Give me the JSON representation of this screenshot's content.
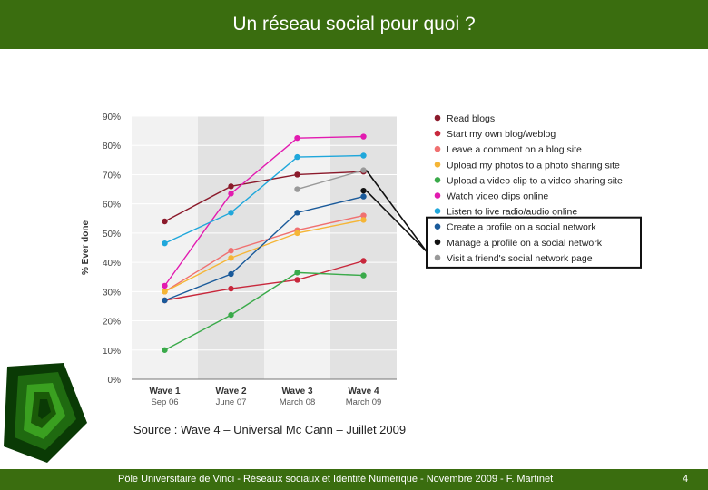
{
  "header": {
    "title": "Un réseau social pour quoi ?"
  },
  "source": "Source : Wave 4 – Universal Mc Cann – Juillet 2009",
  "footer": {
    "text": "Pôle Universitaire de Vinci - Réseaux sociaux et Identité Numérique - Novembre 2009 - F. Martinet",
    "page": "4"
  },
  "colors": {
    "brand": "#3a6d0f",
    "plot_bg_light": "#f2f2f2",
    "plot_bg_dark": "#e2e2e2"
  },
  "chart_data": {
    "type": "line",
    "ylabel": "% Ever done",
    "ylim": [
      0,
      90
    ],
    "yticks": [
      "0%",
      "10%",
      "20%",
      "30%",
      "40%",
      "50%",
      "60%",
      "70%",
      "80%",
      "90%"
    ],
    "categories": [
      "Wave 1",
      "Wave 2",
      "Wave 3",
      "Wave 4"
    ],
    "category_dates": [
      "Sep 06",
      "June 07",
      "March 08",
      "March 09"
    ],
    "legend_position": "right",
    "highlighted_series": [
      "Create a profile on a social network",
      "Manage a profile on a social network",
      "Visit a friend's social network page"
    ],
    "series": [
      {
        "name": "Read blogs",
        "color": "#8b1a2b",
        "values": [
          54,
          66,
          70,
          71
        ]
      },
      {
        "name": "Start my own blog/weblog",
        "color": "#c8283c",
        "values": [
          27,
          31,
          34,
          40.5
        ]
      },
      {
        "name": "Leave a comment on a blog site",
        "color": "#f07070",
        "values": [
          30,
          44,
          51,
          56
        ]
      },
      {
        "name": "Upload my photos to a photo sharing site",
        "color": "#f5b536",
        "values": [
          30,
          41.5,
          50,
          54.5
        ]
      },
      {
        "name": "Upload a video clip to a video sharing site",
        "color": "#3aaa4a",
        "values": [
          10,
          22,
          36.5,
          35.5
        ]
      },
      {
        "name": "Watch video clips online",
        "color": "#e21bb0",
        "values": [
          32,
          63.5,
          82.5,
          83
        ]
      },
      {
        "name": "Listen to live radio/audio online",
        "color": "#1fa7db",
        "values": [
          46.5,
          57,
          76,
          76.5
        ]
      },
      {
        "name": "Create a profile on a social network",
        "color": "#1a5a9a",
        "values": [
          27,
          36,
          57,
          62.5
        ]
      },
      {
        "name": "Manage a profile on a social network",
        "color": "#111111",
        "values": [
          null,
          null,
          null,
          64.5
        ]
      },
      {
        "name": "Visit a friend's social network page",
        "color": "#999999",
        "values": [
          null,
          null,
          65,
          71.5
        ]
      }
    ]
  }
}
